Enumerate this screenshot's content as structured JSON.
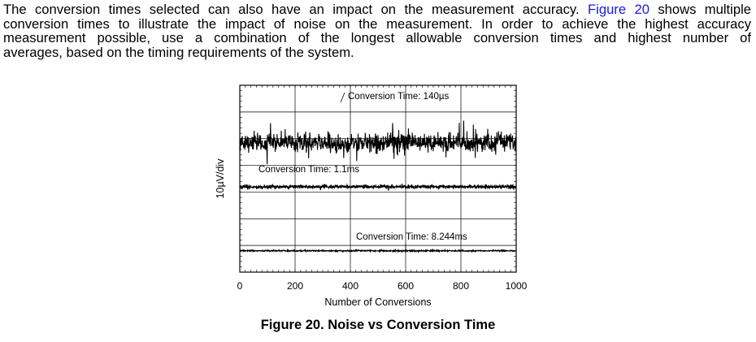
{
  "paragraph": {
    "lines": [
      [
        "The conversion times selected can also have an impact on the measurement accuracy. ",
        "Figure 20",
        " shows multiple"
      ],
      [
        "conversion times to illustrate the impact of noise on the measurement. In order to achieve the highest accuracy"
      ],
      [
        "measurement possible, use a combination of the longest allowable conversion times and highest number of"
      ],
      [
        "averages, based on the timing requirements of the system."
      ]
    ]
  },
  "figure": {
    "caption": "Figure 20.  Noise vs Conversion Time"
  },
  "chart_data": {
    "type": "line",
    "xlabel": "Number of Conversions",
    "ylabel": "10µV/div",
    "xlim": [
      0,
      1000
    ],
    "x_ticks": [
      "0",
      "200",
      "400",
      "600",
      "800",
      "1000"
    ],
    "grid": true,
    "series": [
      {
        "name": "Conversion Time: 140µs",
        "noise_amplitude_div": 0.45,
        "level_div": 4.85
      },
      {
        "name": "Conversion Time: 1.1ms",
        "noise_amplitude_div": 0.08,
        "level_div": 3.2
      },
      {
        "name": "Conversion Time: 8.244ms",
        "noise_amplitude_div": 0.03,
        "level_div": 0.8
      }
    ]
  }
}
